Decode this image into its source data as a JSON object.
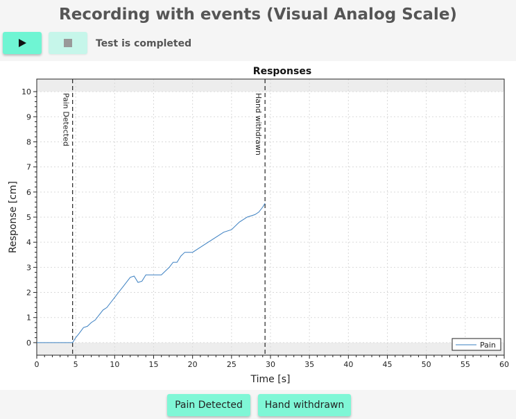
{
  "app": {
    "title": "Recording with events (Visual Analog Scale)",
    "status": "Test is completed"
  },
  "toolbar": {
    "play_icon": "play-icon",
    "stop_icon": "stop-icon"
  },
  "events": {
    "pain_detected_label": "Pain Detected",
    "hand_withdrawn_label": "Hand withdrawn"
  },
  "chart_data": {
    "type": "line",
    "title": "Responses",
    "xlabel": "Time [s]",
    "ylabel": "Response [cm]",
    "xlim": [
      0,
      60
    ],
    "ylim": [
      -0.5,
      10.5
    ],
    "xticks": [
      0,
      5,
      10,
      15,
      20,
      25,
      30,
      35,
      40,
      45,
      50,
      55,
      60
    ],
    "yticks": [
      0,
      1,
      2,
      3,
      4,
      5,
      6,
      7,
      8,
      9,
      10
    ],
    "grid": true,
    "legend": "bottom-right",
    "shaded_bands": [
      {
        "from": 10,
        "to": 10.5
      },
      {
        "from": -0.5,
        "to": 0
      }
    ],
    "events": [
      {
        "x": 4.6,
        "label": "Pain Detected"
      },
      {
        "x": 29.3,
        "label": "Hand withdrawn"
      }
    ],
    "series": [
      {
        "name": "Pain",
        "color": "#3a7fc1",
        "x": [
          0,
          4.6,
          5.0,
          5.4,
          6.0,
          6.5,
          7.0,
          7.5,
          8.0,
          8.5,
          9.0,
          9.5,
          10.0,
          10.5,
          11.0,
          11.5,
          12.0,
          12.5,
          13.0,
          13.5,
          14.0,
          15.0,
          16.0,
          16.5,
          17.0,
          17.5,
          18.0,
          18.5,
          19.0,
          19.5,
          20.0,
          21.0,
          22.0,
          23.0,
          24.0,
          25.0,
          26.0,
          27.0,
          28.0,
          28.5,
          29.0,
          29.3
        ],
        "values": [
          0,
          0,
          0.2,
          0.35,
          0.6,
          0.65,
          0.8,
          0.9,
          1.1,
          1.3,
          1.4,
          1.6,
          1.8,
          2.0,
          2.2,
          2.4,
          2.6,
          2.65,
          2.4,
          2.45,
          2.7,
          2.7,
          2.7,
          2.85,
          3.0,
          3.2,
          3.2,
          3.45,
          3.6,
          3.6,
          3.6,
          3.8,
          4.0,
          4.2,
          4.4,
          4.5,
          4.8,
          5.0,
          5.1,
          5.2,
          5.4,
          5.55
        ]
      }
    ]
  }
}
